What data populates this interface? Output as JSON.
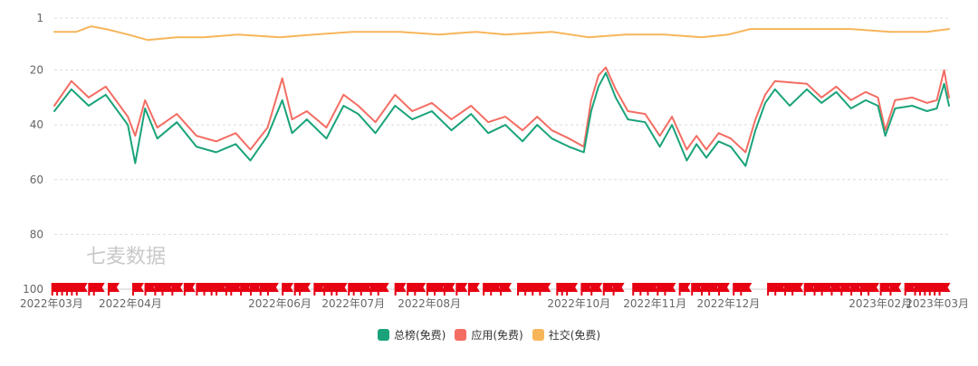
{
  "watermark": "七麦数据",
  "colors": {
    "grid": "#dcdcdc",
    "axis": "#cccccc",
    "flag": "#e60012"
  },
  "chart_data": {
    "type": "line",
    "y_inverted": true,
    "ylim": [
      1,
      100
    ],
    "y_ticks": [
      1,
      20,
      40,
      60,
      80,
      100
    ],
    "x_range": [
      "2022-03-01",
      "2023-03-01"
    ],
    "x_ticks": [
      {
        "date": "2022-03-01",
        "label": "2022年03月"
      },
      {
        "date": "2022-04-01",
        "label": "2022年04月"
      },
      {
        "date": "2022-06-01",
        "label": "2022年06月"
      },
      {
        "date": "2022-07-01",
        "label": "2022年07月"
      },
      {
        "date": "2022-08-01",
        "label": "2022年08月"
      },
      {
        "date": "2022-10-01",
        "label": "2022年10月"
      },
      {
        "date": "2022-11-01",
        "label": "2022年11月"
      },
      {
        "date": "2022-12-01",
        "label": "2022年12月"
      },
      {
        "date": "2023-02-01",
        "label": "2023年02月"
      },
      {
        "date": "2023-03-01",
        "label": "2023年03月"
      }
    ],
    "grid": true,
    "legend_position": "bottom-center",
    "series": [
      {
        "name": "总榜(免费)",
        "color": "#1aa37a",
        "points": [
          [
            "2022-03-01",
            35
          ],
          [
            "2022-03-08",
            27
          ],
          [
            "2022-03-15",
            33
          ],
          [
            "2022-03-22",
            29
          ],
          [
            "2022-03-31",
            40
          ],
          [
            "2022-04-03",
            54
          ],
          [
            "2022-04-07",
            34
          ],
          [
            "2022-04-12",
            45
          ],
          [
            "2022-04-20",
            39
          ],
          [
            "2022-04-28",
            48
          ],
          [
            "2022-05-06",
            50
          ],
          [
            "2022-05-14",
            47
          ],
          [
            "2022-05-20",
            53
          ],
          [
            "2022-05-27",
            44
          ],
          [
            "2022-06-02",
            31
          ],
          [
            "2022-06-06",
            43
          ],
          [
            "2022-06-12",
            38
          ],
          [
            "2022-06-20",
            45
          ],
          [
            "2022-06-27",
            33
          ],
          [
            "2022-07-03",
            36
          ],
          [
            "2022-07-10",
            43
          ],
          [
            "2022-07-18",
            33
          ],
          [
            "2022-07-25",
            38
          ],
          [
            "2022-08-02",
            35
          ],
          [
            "2022-08-10",
            42
          ],
          [
            "2022-08-18",
            36
          ],
          [
            "2022-08-25",
            43
          ],
          [
            "2022-09-01",
            40
          ],
          [
            "2022-09-08",
            46
          ],
          [
            "2022-09-14",
            40
          ],
          [
            "2022-09-20",
            45
          ],
          [
            "2022-09-27",
            48
          ],
          [
            "2022-10-03",
            50
          ],
          [
            "2022-10-06",
            35
          ],
          [
            "2022-10-09",
            26
          ],
          [
            "2022-10-12",
            21
          ],
          [
            "2022-10-16",
            30
          ],
          [
            "2022-10-21",
            38
          ],
          [
            "2022-10-28",
            39
          ],
          [
            "2022-11-03",
            48
          ],
          [
            "2022-11-08",
            40
          ],
          [
            "2022-11-14",
            53
          ],
          [
            "2022-11-18",
            47
          ],
          [
            "2022-11-22",
            52
          ],
          [
            "2022-11-27",
            46
          ],
          [
            "2022-12-02",
            48
          ],
          [
            "2022-12-08",
            55
          ],
          [
            "2022-12-12",
            42
          ],
          [
            "2022-12-16",
            32
          ],
          [
            "2022-12-20",
            27
          ],
          [
            "2022-12-26",
            33
          ],
          [
            "2023-01-02",
            27
          ],
          [
            "2023-01-08",
            32
          ],
          [
            "2023-01-14",
            28
          ],
          [
            "2023-01-20",
            34
          ],
          [
            "2023-01-26",
            31
          ],
          [
            "2023-01-31",
            33
          ],
          [
            "2023-02-03",
            44
          ],
          [
            "2023-02-07",
            34
          ],
          [
            "2023-02-14",
            33
          ],
          [
            "2023-02-20",
            35
          ],
          [
            "2023-02-24",
            34
          ],
          [
            "2023-02-27",
            25
          ],
          [
            "2023-03-01",
            33
          ]
        ]
      },
      {
        "name": "应用(免费)",
        "color": "#f36d63",
        "points": [
          [
            "2022-03-01",
            33
          ],
          [
            "2022-03-08",
            24
          ],
          [
            "2022-03-15",
            30
          ],
          [
            "2022-03-22",
            26
          ],
          [
            "2022-03-31",
            37
          ],
          [
            "2022-04-03",
            44
          ],
          [
            "2022-04-07",
            31
          ],
          [
            "2022-04-12",
            41
          ],
          [
            "2022-04-20",
            36
          ],
          [
            "2022-04-28",
            44
          ],
          [
            "2022-05-06",
            46
          ],
          [
            "2022-05-14",
            43
          ],
          [
            "2022-05-20",
            49
          ],
          [
            "2022-05-27",
            41
          ],
          [
            "2022-06-02",
            23
          ],
          [
            "2022-06-06",
            38
          ],
          [
            "2022-06-12",
            35
          ],
          [
            "2022-06-20",
            41
          ],
          [
            "2022-06-27",
            29
          ],
          [
            "2022-07-03",
            33
          ],
          [
            "2022-07-10",
            39
          ],
          [
            "2022-07-18",
            29
          ],
          [
            "2022-07-25",
            35
          ],
          [
            "2022-08-02",
            32
          ],
          [
            "2022-08-10",
            38
          ],
          [
            "2022-08-18",
            33
          ],
          [
            "2022-08-25",
            39
          ],
          [
            "2022-09-01",
            37
          ],
          [
            "2022-09-08",
            42
          ],
          [
            "2022-09-14",
            37
          ],
          [
            "2022-09-20",
            42
          ],
          [
            "2022-09-27",
            45
          ],
          [
            "2022-10-03",
            48
          ],
          [
            "2022-10-06",
            31
          ],
          [
            "2022-10-09",
            22
          ],
          [
            "2022-10-12",
            19
          ],
          [
            "2022-10-16",
            27
          ],
          [
            "2022-10-21",
            35
          ],
          [
            "2022-10-28",
            36
          ],
          [
            "2022-11-03",
            44
          ],
          [
            "2022-11-08",
            37
          ],
          [
            "2022-11-14",
            49
          ],
          [
            "2022-11-18",
            44
          ],
          [
            "2022-11-22",
            49
          ],
          [
            "2022-11-27",
            43
          ],
          [
            "2022-12-02",
            45
          ],
          [
            "2022-12-08",
            50
          ],
          [
            "2022-12-12",
            38
          ],
          [
            "2022-12-16",
            29
          ],
          [
            "2022-12-20",
            24
          ],
          [
            "2023-01-02",
            25
          ],
          [
            "2023-01-08",
            30
          ],
          [
            "2023-01-14",
            26
          ],
          [
            "2023-01-20",
            31
          ],
          [
            "2023-01-26",
            28
          ],
          [
            "2023-01-31",
            30
          ],
          [
            "2023-02-03",
            42
          ],
          [
            "2023-02-07",
            31
          ],
          [
            "2023-02-14",
            30
          ],
          [
            "2023-02-20",
            32
          ],
          [
            "2023-02-24",
            31
          ],
          [
            "2023-02-27",
            20
          ],
          [
            "2023-03-01",
            30
          ]
        ]
      },
      {
        "name": "社交(免费)",
        "color": "#f7b55a",
        "points": [
          [
            "2022-03-01",
            6
          ],
          [
            "2022-03-10",
            6
          ],
          [
            "2022-03-16",
            4
          ],
          [
            "2022-03-22",
            5
          ],
          [
            "2022-03-31",
            7
          ],
          [
            "2022-04-08",
            9
          ],
          [
            "2022-04-20",
            8
          ],
          [
            "2022-05-01",
            8
          ],
          [
            "2022-05-15",
            7
          ],
          [
            "2022-06-01",
            8
          ],
          [
            "2022-06-15",
            7
          ],
          [
            "2022-07-01",
            6
          ],
          [
            "2022-07-20",
            6
          ],
          [
            "2022-08-05",
            7
          ],
          [
            "2022-08-20",
            6
          ],
          [
            "2022-09-01",
            7
          ],
          [
            "2022-09-20",
            6
          ],
          [
            "2022-10-05",
            8
          ],
          [
            "2022-10-20",
            7
          ],
          [
            "2022-11-05",
            7
          ],
          [
            "2022-11-20",
            8
          ],
          [
            "2022-12-01",
            7
          ],
          [
            "2022-12-10",
            5
          ],
          [
            "2022-12-20",
            5
          ],
          [
            "2023-01-05",
            5
          ],
          [
            "2023-01-20",
            5
          ],
          [
            "2023-02-05",
            6
          ],
          [
            "2023-02-20",
            6
          ],
          [
            "2023-03-01",
            5
          ]
        ]
      }
    ],
    "event_markers": [
      "2022-03-02",
      "2022-03-04",
      "2022-03-06",
      "2022-03-08",
      "2022-03-10",
      "2022-03-12",
      "2022-03-17",
      "2022-03-19",
      "2022-03-25",
      "2022-04-04",
      "2022-04-09",
      "2022-04-13",
      "2022-04-16",
      "2022-04-20",
      "2022-04-25",
      "2022-04-30",
      "2022-05-03",
      "2022-05-06",
      "2022-05-08",
      "2022-05-12",
      "2022-05-14",
      "2022-05-18",
      "2022-05-22",
      "2022-05-26",
      "2022-05-29",
      "2022-06-04",
      "2022-06-09",
      "2022-06-11",
      "2022-06-17",
      "2022-06-21",
      "2022-06-24",
      "2022-06-26",
      "2022-07-01",
      "2022-07-03",
      "2022-07-06",
      "2022-07-10",
      "2022-07-13",
      "2022-07-20",
      "2022-07-25",
      "2022-07-28",
      "2022-08-02",
      "2022-08-05",
      "2022-08-09",
      "2022-08-14",
      "2022-08-19",
      "2022-08-25",
      "2022-08-28",
      "2022-09-01",
      "2022-09-08",
      "2022-09-11",
      "2022-09-14",
      "2022-09-17",
      "2022-09-24",
      "2022-09-26",
      "2022-09-28",
      "2022-10-04",
      "2022-10-08",
      "2022-10-13",
      "2022-10-17",
      "2022-10-25",
      "2022-10-28",
      "2022-10-31",
      "2022-11-04",
      "2022-11-07",
      "2022-11-13",
      "2022-11-18",
      "2022-11-22",
      "2022-11-25",
      "2022-11-29",
      "2022-12-05",
      "2022-12-08",
      "2022-12-19",
      "2022-12-22",
      "2022-12-26",
      "2022-12-29",
      "2023-01-03",
      "2023-01-07",
      "2023-01-10",
      "2023-01-14",
      "2023-01-18",
      "2023-01-22",
      "2023-01-26",
      "2023-01-29",
      "2023-02-03",
      "2023-02-07",
      "2023-02-13",
      "2023-02-17",
      "2023-02-19",
      "2023-02-21",
      "2023-02-23",
      "2023-02-25",
      "2023-02-27"
    ]
  }
}
